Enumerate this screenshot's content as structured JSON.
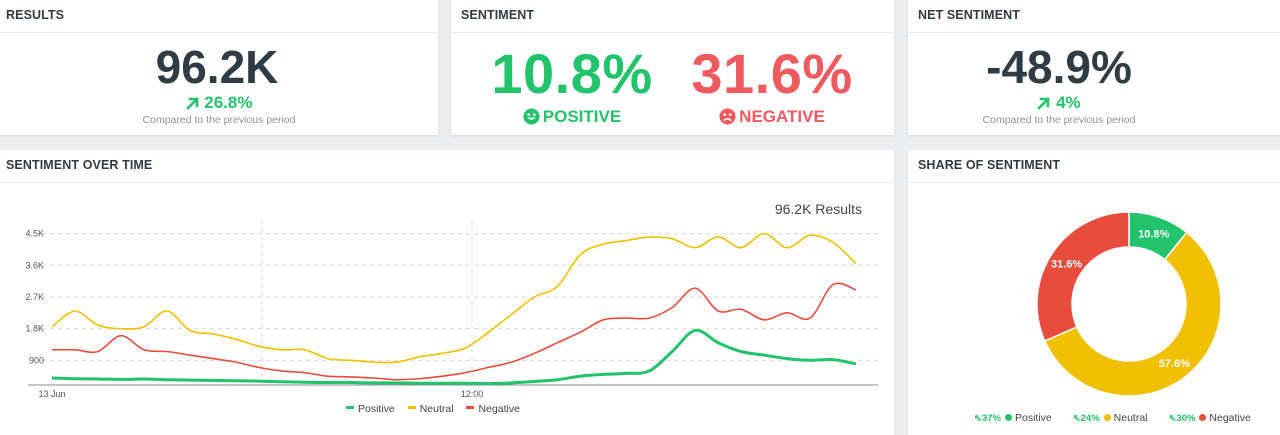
{
  "results": {
    "title": "RESULTS",
    "value": "96.2K",
    "change": "26.8%",
    "compare": "Compared to the previous period"
  },
  "sentiment": {
    "title": "SENTIMENT",
    "positive_value": "10.8%",
    "positive_label": "POSITIVE",
    "negative_value": "31.6%",
    "negative_label": "NEGATIVE",
    "positive_color": "#22c36b",
    "negative_color": "#ef5a5f"
  },
  "net_sentiment": {
    "title": "NET SENTIMENT",
    "value": "-48.9%",
    "change": "4%",
    "compare": "Compared to the previous period"
  },
  "sentiment_over_time": {
    "title": "SENTIMENT OVER TIME",
    "total": "96.2K Results",
    "legend": [
      "Positive",
      "Neutral",
      "Negative"
    ]
  },
  "share_of_sentiment": {
    "title": "SHARE OF SENTIMENT",
    "legend": [
      {
        "change": "37%",
        "label": "Positive",
        "color": "#22c36b"
      },
      {
        "change": "24%",
        "label": "Neutral",
        "color": "#f0c000"
      },
      {
        "change": "30%",
        "label": "Negative",
        "color": "#e74c3c"
      }
    ]
  },
  "chart_data": [
    {
      "type": "line",
      "title": "",
      "x_tick_labels": [
        "13 Jun",
        "12:00"
      ],
      "y_tick_labels": [
        "900",
        "1.8K",
        "2.7K",
        "3.6K",
        "4.5K"
      ],
      "y_ticks": [
        900,
        1800,
        2700,
        3600,
        4500
      ],
      "ylim": [
        200,
        4800
      ],
      "x_count": 36,
      "series": [
        {
          "name": "Positive",
          "color": "#22c36b",
          "values": [
            400,
            380,
            370,
            360,
            370,
            350,
            340,
            330,
            320,
            310,
            290,
            280,
            270,
            270,
            260,
            260,
            250,
            250,
            250,
            240,
            260,
            300,
            350,
            450,
            500,
            530,
            600,
            1150,
            1750,
            1400,
            1150,
            1050,
            950,
            900,
            920,
            800
          ]
        },
        {
          "name": "Neutral",
          "color": "#f0c000",
          "values": [
            1850,
            2300,
            1900,
            1800,
            1850,
            2300,
            1750,
            1650,
            1500,
            1300,
            1200,
            1200,
            950,
            900,
            850,
            850,
            1000,
            1100,
            1250,
            1700,
            2200,
            2700,
            3000,
            3900,
            4200,
            4300,
            4400,
            4350,
            4100,
            4400,
            4100,
            4500,
            4100,
            4450,
            4250,
            3650
          ]
        },
        {
          "name": "Negative",
          "color": "#e74c3c",
          "values": [
            1200,
            1200,
            1150,
            1600,
            1200,
            1150,
            1050,
            950,
            850,
            700,
            600,
            550,
            450,
            430,
            400,
            350,
            380,
            450,
            550,
            700,
            850,
            1100,
            1400,
            1700,
            2050,
            2100,
            2100,
            2400,
            2950,
            2300,
            2350,
            2050,
            2250,
            2100,
            3050,
            2900
          ]
        }
      ]
    },
    {
      "type": "pie",
      "title": "",
      "categories": [
        "Positive",
        "Neutral",
        "Negative"
      ],
      "values": [
        10.8,
        57.6,
        31.6
      ],
      "colors": [
        "#22c36b",
        "#f0c000",
        "#e74c3c"
      ],
      "labels": [
        "10.8%",
        "57.6%",
        "31.6%"
      ]
    }
  ]
}
